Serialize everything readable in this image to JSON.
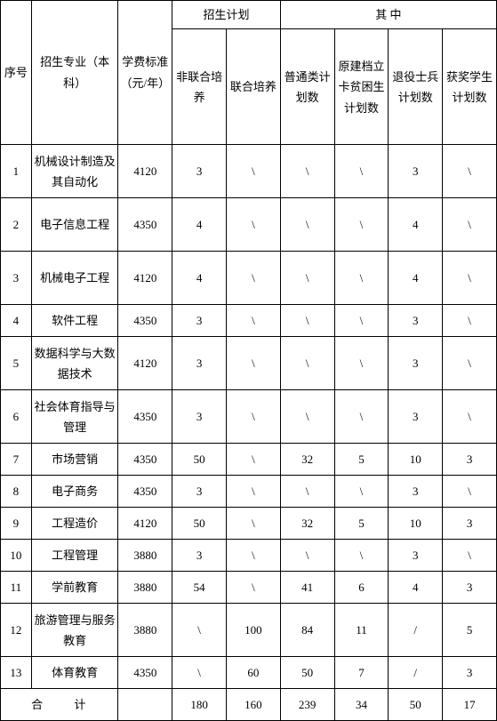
{
  "table": {
    "headers": {
      "seq": "序号",
      "major": "招生专业（本科）",
      "fee": "学费标准（元/年）",
      "plan_group": "招生计划",
      "detail_group": "其  中",
      "non_joint": "非联合培养",
      "joint": "联合培养",
      "ordinary": "普通类计划数",
      "poverty": "原建档立卡贫困生计划数",
      "veteran": "退役士兵计划数",
      "awarded": "获奖学生计划数"
    },
    "rows": [
      {
        "seq": "1",
        "major": "机械设计制造及其自动化",
        "fee": "4120",
        "non_joint": "3",
        "joint": "\\",
        "ordinary": "\\",
        "poverty": "\\",
        "veteran": "3",
        "awarded": "\\",
        "tall": true
      },
      {
        "seq": "2",
        "major": "电子信息工程",
        "fee": "4350",
        "non_joint": "4",
        "joint": "\\",
        "ordinary": "\\",
        "poverty": "\\",
        "veteran": "4",
        "awarded": "\\",
        "tall": true
      },
      {
        "seq": "3",
        "major": "机械电子工程",
        "fee": "4120",
        "non_joint": "4",
        "joint": "\\",
        "ordinary": "\\",
        "poverty": "\\",
        "veteran": "4",
        "awarded": "\\",
        "tall": true
      },
      {
        "seq": "4",
        "major": "软件工程",
        "fee": "4350",
        "non_joint": "3",
        "joint": "\\",
        "ordinary": "\\",
        "poverty": "\\",
        "veteran": "3",
        "awarded": "\\",
        "tall": false
      },
      {
        "seq": "5",
        "major": "数据科学与大数据技术",
        "fee": "4120",
        "non_joint": "3",
        "joint": "\\",
        "ordinary": "\\",
        "poverty": "\\",
        "veteran": "3",
        "awarded": "\\",
        "tall": true
      },
      {
        "seq": "6",
        "major": "社会体育指导与管理",
        "fee": "4350",
        "non_joint": "3",
        "joint": "\\",
        "ordinary": "\\",
        "poverty": "\\",
        "veteran": "3",
        "awarded": "\\",
        "tall": true
      },
      {
        "seq": "7",
        "major": "市场营销",
        "fee": "4350",
        "non_joint": "50",
        "joint": "\\",
        "ordinary": "32",
        "poverty": "5",
        "veteran": "10",
        "awarded": "3",
        "tall": false
      },
      {
        "seq": "8",
        "major": "电子商务",
        "fee": "4350",
        "non_joint": "3",
        "joint": "\\",
        "ordinary": "\\",
        "poverty": "\\",
        "veteran": "3",
        "awarded": "\\",
        "tall": false
      },
      {
        "seq": "9",
        "major": "工程造价",
        "fee": "4120",
        "non_joint": "50",
        "joint": "\\",
        "ordinary": "32",
        "poverty": "5",
        "veteran": "10",
        "awarded": "3",
        "tall": false
      },
      {
        "seq": "10",
        "major": "工程管理",
        "fee": "3880",
        "non_joint": "3",
        "joint": "\\",
        "ordinary": "\\",
        "poverty": "\\",
        "veteran": "3",
        "awarded": "\\",
        "tall": false
      },
      {
        "seq": "11",
        "major": "学前教育",
        "fee": "3880",
        "non_joint": "54",
        "joint": "\\",
        "ordinary": "41",
        "poverty": "6",
        "veteran": "4",
        "awarded": "3",
        "tall": false
      },
      {
        "seq": "12",
        "major": "旅游管理与服务教育",
        "fee": "3880",
        "non_joint": "\\",
        "joint": "100",
        "ordinary": "84",
        "poverty": "11",
        "veteran": "/",
        "awarded": "5",
        "tall": true
      },
      {
        "seq": "13",
        "major": "体育教育",
        "fee": "4350",
        "non_joint": "\\",
        "joint": "60",
        "ordinary": "50",
        "poverty": "7",
        "veteran": "/",
        "awarded": "3",
        "tall": false
      }
    ],
    "footer": {
      "label": "合  计",
      "fee": "",
      "non_joint": "180",
      "joint": "160",
      "ordinary": "239",
      "poverty": "34",
      "veteran": "50",
      "awarded": "17"
    },
    "colors": {
      "border": "#000000",
      "background": "#ffffff",
      "text": "#000000"
    },
    "fontsize": 13
  }
}
